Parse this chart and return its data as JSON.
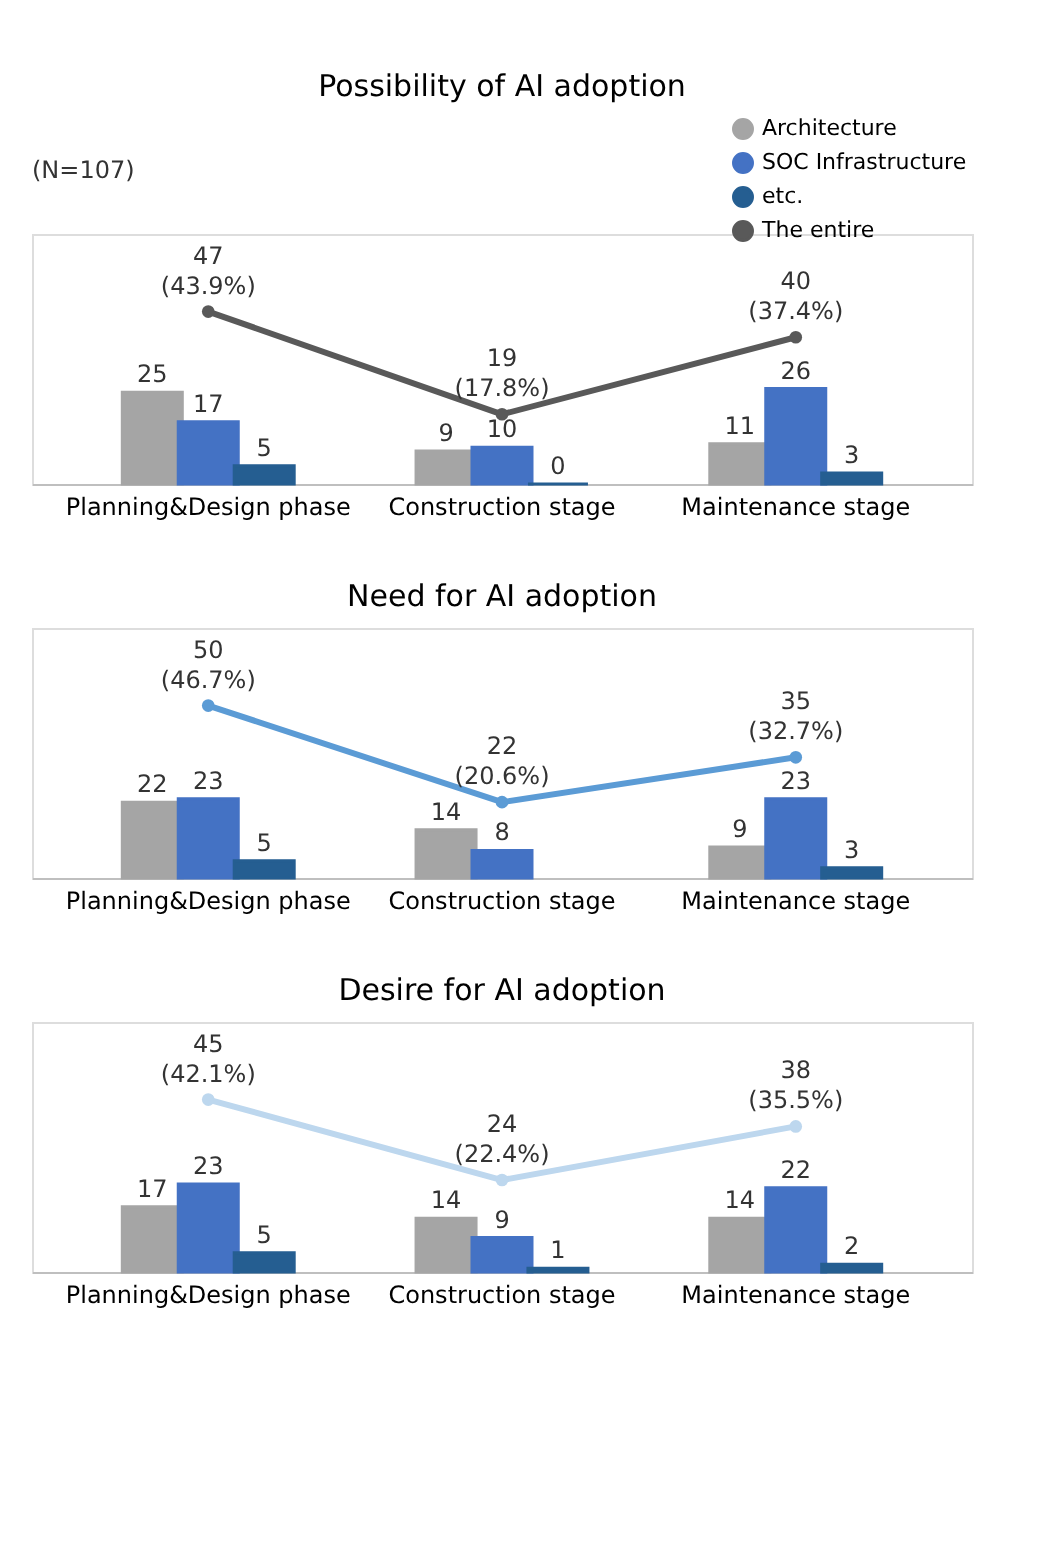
{
  "chart_data": [
    {
      "type": "bar",
      "title": "Possibility of AI adoption",
      "categories": [
        "Planning&Design phase",
        "Construction stage",
        "Maintenance stage"
      ],
      "legend": "top right",
      "marker": "circle",
      "annotations": [
        "(N=107)"
      ],
      "series": [
        {
          "name": "Architecture",
          "color": "#a5a5a5",
          "values": [
            25,
            9,
            11
          ],
          "value_labels": [
            "25",
            "9",
            "11"
          ]
        },
        {
          "name": "SOC Infrastructure",
          "color": "#4472c4",
          "values": [
            17,
            10,
            26
          ],
          "value_labels": [
            "17",
            "10",
            "26"
          ]
        },
        {
          "name": "etc.",
          "color": "#255e91",
          "values": [
            5,
            0,
            3
          ],
          "value_labels": [
            "5",
            "0",
            "3"
          ]
        },
        {
          "name": "The entire",
          "type": "line",
          "color": "#595959",
          "values": [
            47,
            19,
            40
          ],
          "value_labels": [
            "47\n(43.9%)",
            "19\n(17.8%)",
            "40\n(37.4%)"
          ]
        }
      ]
    },
    {
      "type": "bar",
      "title": "Need for AI adoption",
      "categories": [
        "Planning&Design phase",
        "Construction stage",
        "Maintenance stage"
      ],
      "marker": "circle",
      "series": [
        {
          "color": "#a5a5a5",
          "values": [
            22,
            14,
            9
          ],
          "value_labels": [
            "22",
            "14",
            "9"
          ]
        },
        {
          "color": "#4472c4",
          "values": [
            23,
            8,
            23
          ],
          "value_labels": [
            "23",
            "8",
            "23"
          ]
        },
        {
          "color": "#255e91",
          "values": [
            5,
            null,
            3
          ],
          "value_labels": [
            "5",
            null,
            "3"
          ]
        },
        {
          "type": "line",
          "color": "#5b9bd5",
          "values": [
            50,
            22,
            35
          ],
          "value_labels": [
            "50\n(46.7%)",
            "22\n(20.6%)",
            "35\n(32.7%)"
          ]
        }
      ]
    },
    {
      "type": "bar",
      "title": "Desire for AI adoption",
      "categories": [
        "Planning&Design phase",
        "Construction stage",
        "Maintenance stage"
      ],
      "marker": "circle",
      "series": [
        {
          "color": "#a5a5a5",
          "values": [
            17,
            14,
            14
          ],
          "value_labels": [
            "17",
            "14",
            "14"
          ]
        },
        {
          "color": "#4472c4",
          "values": [
            23,
            9,
            22
          ],
          "value_labels": [
            "23",
            "9",
            "22"
          ]
        },
        {
          "color": "#255e91",
          "values": [
            5,
            1,
            2
          ],
          "value_labels": [
            "5",
            "1",
            "2"
          ]
        },
        {
          "type": "line",
          "color": "#bdd7ee",
          "values": [
            45,
            24,
            38
          ],
          "value_labels": [
            "45\n(42.1%)",
            "24\n(22.4%)",
            "38\n(35.5%)"
          ]
        }
      ]
    }
  ]
}
